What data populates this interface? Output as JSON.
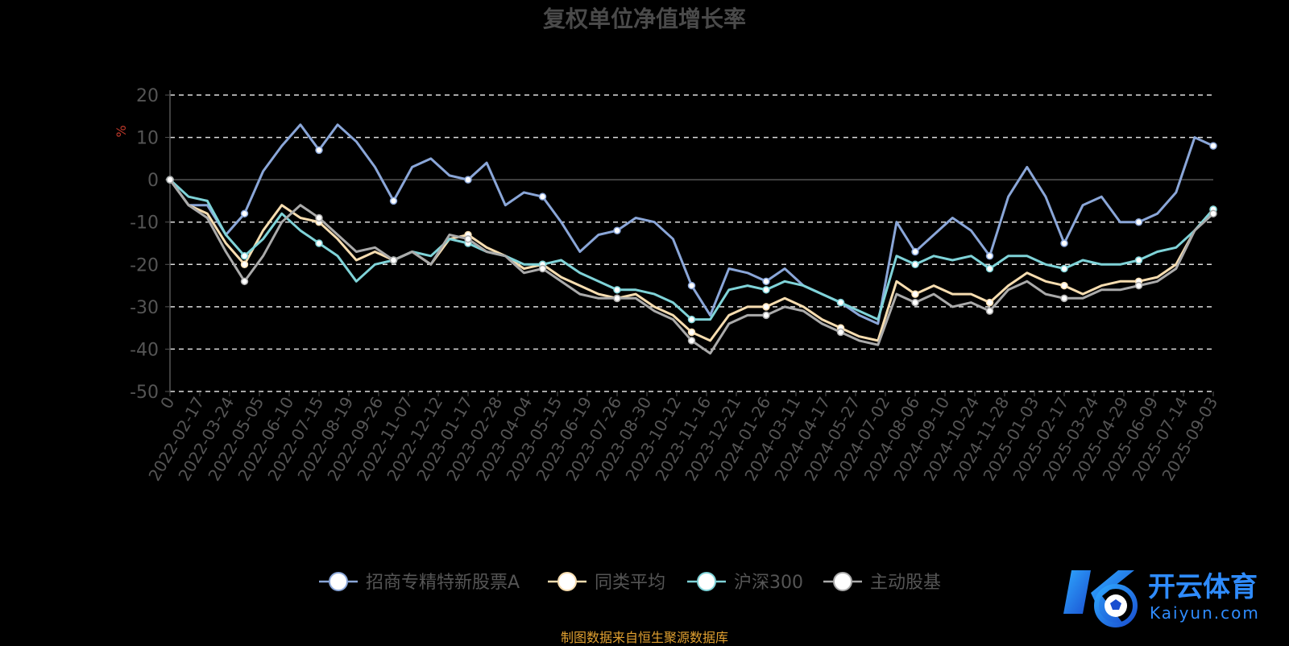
{
  "chart_data": {
    "type": "line",
    "title": "复权单位净值增长率",
    "ylabel": "%",
    "ylim": [
      -50,
      20
    ],
    "yticks": [
      20,
      10,
      0,
      -10,
      -20,
      -30,
      -40,
      -50
    ],
    "grid": true,
    "legend_position": "bottom",
    "x_ticks": [
      "0",
      "2022-02-17",
      "2022-03-24",
      "2022-05-05",
      "2022-06-10",
      "2022-07-15",
      "2022-08-19",
      "2022-09-26",
      "2022-11-07",
      "2022-12-12",
      "2023-01-17",
      "2023-02-28",
      "2023-04-04",
      "2023-05-15",
      "2023-06-19",
      "2023-07-26",
      "2023-08-30",
      "2023-10-12",
      "2023-11-16",
      "2023-12-21",
      "2024-01-26",
      "2024-03-11",
      "2024-04-17",
      "2024-05-27",
      "2024-07-02",
      "2024-08-06",
      "2024-09-10",
      "2024-10-24",
      "2024-11-28",
      "2025-01-03",
      "2025-02-17",
      "2025-03-24",
      "2025-04-29",
      "2025-06-09",
      "2025-07-14",
      "2025-09-03"
    ],
    "series": [
      {
        "name": "招商专精特新股票A",
        "color": "#8aa6d8",
        "values": [
          0,
          -6,
          -6,
          -13,
          -8,
          2,
          8,
          13,
          7,
          13,
          9,
          3,
          -5,
          3,
          5,
          1,
          0,
          4,
          -6,
          -3,
          -4,
          -10,
          -17,
          -13,
          -12,
          -9,
          -10,
          -14,
          -25,
          -32,
          -21,
          -22,
          -24,
          -21,
          -25,
          -27,
          -29,
          -32,
          -34,
          -10,
          -17,
          -13,
          -9,
          -12,
          -18,
          -4,
          3,
          -4,
          -15,
          -6,
          -4,
          -10,
          -10,
          -8,
          -3,
          10,
          8
        ]
      },
      {
        "name": "同类平均",
        "color": "#f7ddb0",
        "values": [
          0,
          -6,
          -8,
          -15,
          -20,
          -12,
          -6,
          -9,
          -10,
          -14,
          -19,
          -17,
          -19,
          -17,
          -20,
          -14,
          -13,
          -16,
          -18,
          -21,
          -20,
          -23,
          -25,
          -27,
          -28,
          -27,
          -30,
          -32,
          -36,
          -38,
          -32,
          -30,
          -30,
          -28,
          -30,
          -33,
          -35,
          -37,
          -38,
          -24,
          -27,
          -25,
          -27,
          -27,
          -29,
          -25,
          -22,
          -24,
          -25,
          -27,
          -25,
          -24,
          -24,
          -23,
          -20,
          -12,
          -7
        ]
      },
      {
        "name": "沪深300",
        "color": "#7fd3d8",
        "values": [
          0,
          -4,
          -5,
          -13,
          -18,
          -14,
          -8,
          -12,
          -15,
          -18,
          -24,
          -20,
          -19,
          -17,
          -18,
          -14,
          -15,
          -17,
          -18,
          -20,
          -20,
          -19,
          -22,
          -24,
          -26,
          -26,
          -27,
          -29,
          -33,
          -33,
          -26,
          -25,
          -26,
          -24,
          -25,
          -27,
          -29,
          -31,
          -33,
          -18,
          -20,
          -18,
          -19,
          -18,
          -21,
          -18,
          -18,
          -20,
          -21,
          -19,
          -20,
          -20,
          -19,
          -17,
          -16,
          -12,
          -7
        ]
      },
      {
        "name": "主动股基",
        "color": "#aaaaaa",
        "values": [
          0,
          -6,
          -9,
          -17,
          -24,
          -18,
          -10,
          -6,
          -9,
          -13,
          -17,
          -16,
          -19,
          -17,
          -20,
          -13,
          -14,
          -17,
          -18,
          -22,
          -21,
          -24,
          -27,
          -28,
          -28,
          -28,
          -31,
          -33,
          -38,
          -41,
          -34,
          -32,
          -32,
          -30,
          -31,
          -34,
          -36,
          -38,
          -39,
          -27,
          -29,
          -27,
          -30,
          -29,
          -31,
          -26,
          -24,
          -27,
          -28,
          -28,
          -26,
          -26,
          -25,
          -24,
          -21,
          -12,
          -8
        ]
      }
    ]
  },
  "source_note": "制图数据来自恒生聚源数据库",
  "logo": {
    "name": "开云体育",
    "url_text": "Kaiyun.com"
  }
}
